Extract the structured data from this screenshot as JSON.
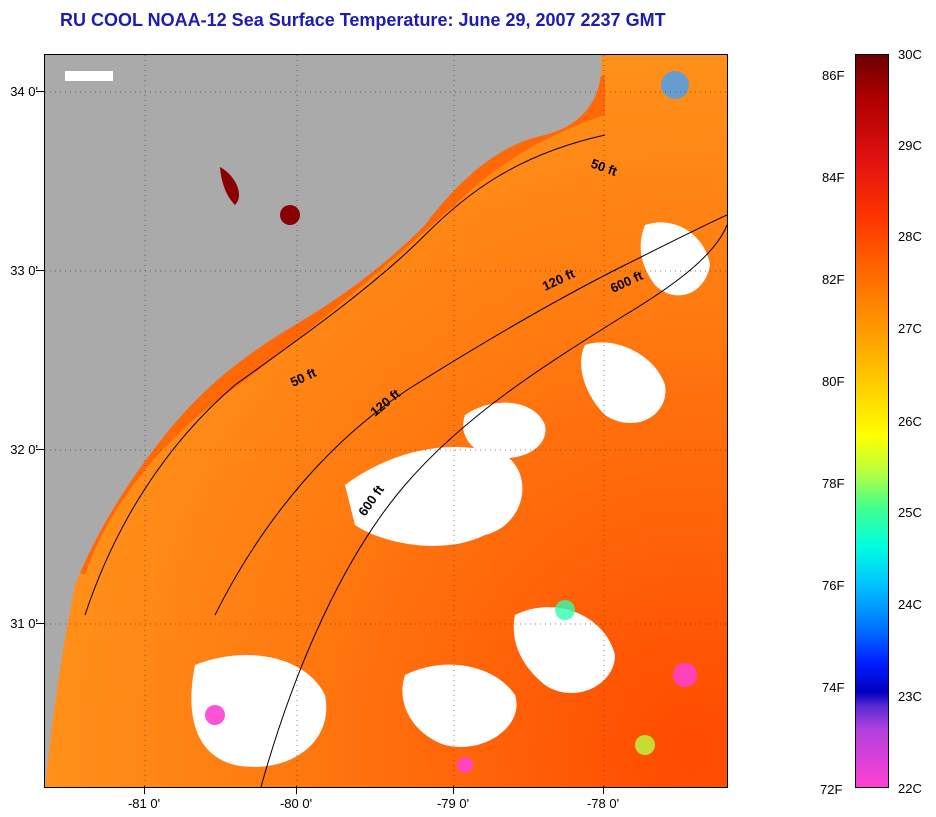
{
  "title": "RU COOL  NOAA-12  Sea Surface Temperature:  June 29, 2007 2237 GMT",
  "map": {
    "lat_labels": [
      "34 0'",
      "33 0'",
      "32 0'",
      "31 0'"
    ],
    "lon_labels": [
      "-81 0'",
      "-80 0'",
      "-79 0'",
      "-78 0'"
    ],
    "contours": {
      "c50_top": "50 ft",
      "c120_top": "120 ft",
      "c600_top": "600 ft",
      "c50_mid": "50 ft",
      "c120_mid": "120 ft",
      "c600_mid": "600 ft"
    },
    "colors": {
      "land": "#aaaaaa",
      "cloud": "#ffffff",
      "warm_sea": "#ff7a10"
    }
  },
  "colorbar": {
    "fahrenheit_labels": [
      "86F",
      "84F",
      "82F",
      "80F",
      "78F",
      "76F",
      "74F",
      "72F"
    ],
    "celsius_labels": [
      "30C",
      "29C",
      "28C",
      "27C",
      "26C",
      "25C",
      "24C",
      "23C",
      "22C"
    ]
  }
}
